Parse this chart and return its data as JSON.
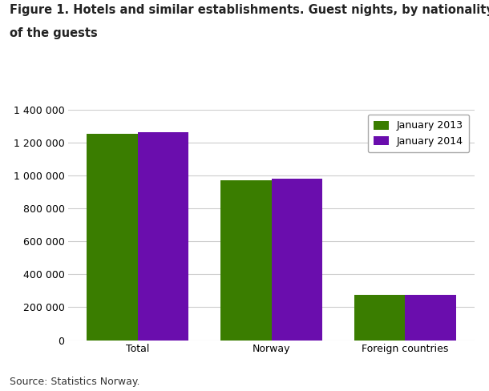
{
  "title_line1": "Figure 1. Hotels and similar establishments. Guest nights, by nationality",
  "title_line2": "of the guests",
  "categories": [
    "Total",
    "Norway",
    "Foreign countries"
  ],
  "jan2013": [
    1252000,
    972000,
    275000
  ],
  "jan2014": [
    1262000,
    982000,
    275000
  ],
  "color_2013": "#3a7d00",
  "color_2014": "#6a0dad",
  "legend_labels": [
    "January 2013",
    "January 2014"
  ],
  "ylim": [
    0,
    1400000
  ],
  "yticks": [
    0,
    200000,
    400000,
    600000,
    800000,
    1000000,
    1200000,
    1400000
  ],
  "ytick_labels": [
    "0",
    "200 000",
    "400 000",
    "600 000",
    "800 000",
    "1 000 000",
    "1 200 000",
    "1 400 000"
  ],
  "source": "Source: Statistics Norway.",
  "background_color": "#ffffff",
  "grid_color": "#cccccc",
  "title_fontsize": 10.5,
  "tick_fontsize": 9,
  "legend_fontsize": 9,
  "source_fontsize": 9,
  "bar_width": 0.38
}
